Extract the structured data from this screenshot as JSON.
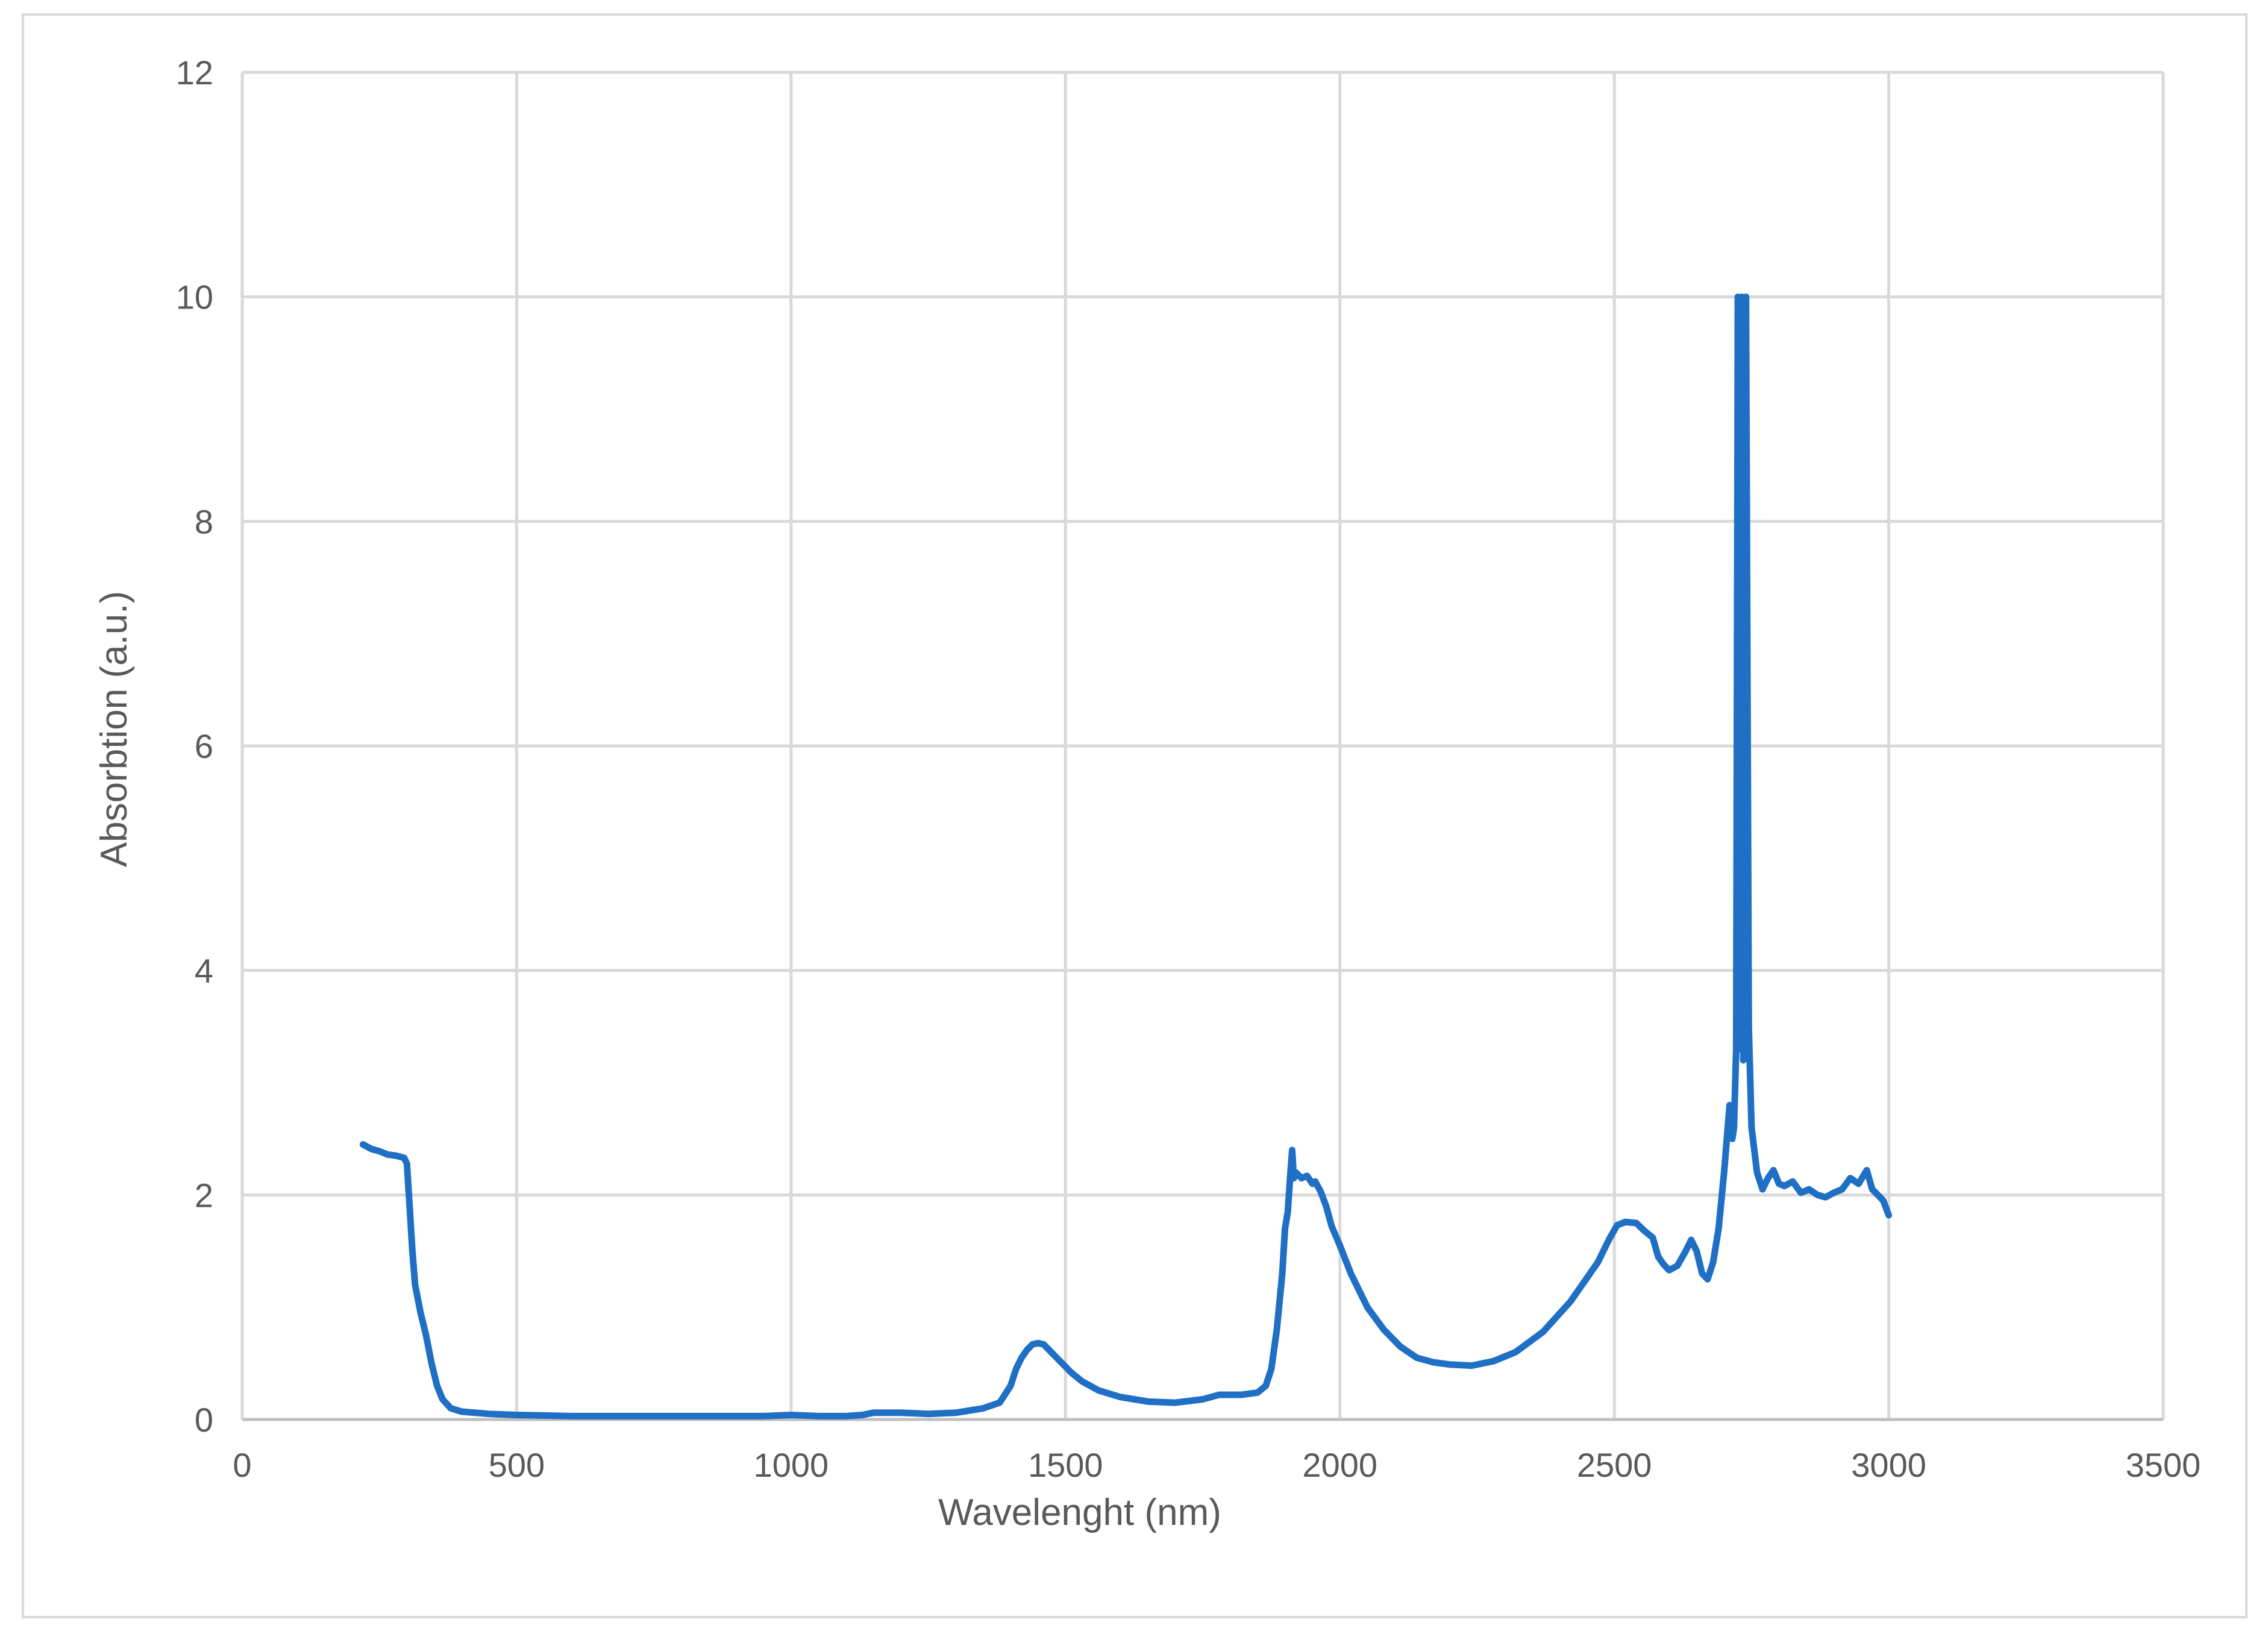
{
  "chart_data": {
    "type": "line",
    "title": "",
    "xlabel": "Wavelenght (nm)",
    "ylabel": "Absorbtion (a.u.)",
    "xlim": [
      0,
      3500
    ],
    "ylim": [
      0,
      12
    ],
    "x_ticks": [
      0,
      500,
      1000,
      1500,
      2000,
      2500,
      3000,
      3500
    ],
    "y_ticks": [
      0,
      2,
      4,
      6,
      8,
      10,
      12
    ],
    "grid": true,
    "legend": "none",
    "series_color": "#1f6fc5",
    "series": [
      {
        "points": [
          [
            220,
            2.45
          ],
          [
            235,
            2.41
          ],
          [
            250,
            2.39
          ],
          [
            265,
            2.36
          ],
          [
            280,
            2.35
          ],
          [
            295,
            2.33
          ],
          [
            300,
            2.28
          ],
          [
            305,
            1.9
          ],
          [
            310,
            1.5
          ],
          [
            315,
            1.2
          ],
          [
            325,
            0.95
          ],
          [
            335,
            0.75
          ],
          [
            345,
            0.5
          ],
          [
            355,
            0.3
          ],
          [
            365,
            0.18
          ],
          [
            380,
            0.1
          ],
          [
            400,
            0.07
          ],
          [
            450,
            0.05
          ],
          [
            500,
            0.04
          ],
          [
            600,
            0.03
          ],
          [
            700,
            0.03
          ],
          [
            800,
            0.03
          ],
          [
            900,
            0.03
          ],
          [
            950,
            0.03
          ],
          [
            1000,
            0.04
          ],
          [
            1050,
            0.03
          ],
          [
            1100,
            0.03
          ],
          [
            1130,
            0.04
          ],
          [
            1150,
            0.06
          ],
          [
            1200,
            0.06
          ],
          [
            1250,
            0.05
          ],
          [
            1300,
            0.06
          ],
          [
            1350,
            0.1
          ],
          [
            1380,
            0.15
          ],
          [
            1400,
            0.3
          ],
          [
            1410,
            0.45
          ],
          [
            1420,
            0.55
          ],
          [
            1430,
            0.62
          ],
          [
            1440,
            0.67
          ],
          [
            1450,
            0.68
          ],
          [
            1460,
            0.67
          ],
          [
            1470,
            0.62
          ],
          [
            1490,
            0.52
          ],
          [
            1510,
            0.42
          ],
          [
            1530,
            0.34
          ],
          [
            1560,
            0.26
          ],
          [
            1600,
            0.2
          ],
          [
            1650,
            0.16
          ],
          [
            1700,
            0.15
          ],
          [
            1750,
            0.18
          ],
          [
            1780,
            0.22
          ],
          [
            1820,
            0.22
          ],
          [
            1850,
            0.24
          ],
          [
            1865,
            0.3
          ],
          [
            1875,
            0.45
          ],
          [
            1885,
            0.8
          ],
          [
            1895,
            1.3
          ],
          [
            1900,
            1.7
          ],
          [
            1905,
            1.85
          ],
          [
            1910,
            2.2
          ],
          [
            1913,
            2.4
          ],
          [
            1916,
            2.15
          ],
          [
            1920,
            2.2
          ],
          [
            1930,
            2.15
          ],
          [
            1940,
            2.17
          ],
          [
            1950,
            2.1
          ],
          [
            1955,
            2.12
          ],
          [
            1965,
            2.03
          ],
          [
            1975,
            1.9
          ],
          [
            1985,
            1.72
          ],
          [
            2000,
            1.55
          ],
          [
            2020,
            1.3
          ],
          [
            2050,
            1.0
          ],
          [
            2080,
            0.8
          ],
          [
            2110,
            0.65
          ],
          [
            2140,
            0.55
          ],
          [
            2170,
            0.51
          ],
          [
            2200,
            0.49
          ],
          [
            2240,
            0.48
          ],
          [
            2280,
            0.52
          ],
          [
            2320,
            0.6
          ],
          [
            2370,
            0.78
          ],
          [
            2420,
            1.05
          ],
          [
            2470,
            1.4
          ],
          [
            2490,
            1.6
          ],
          [
            2505,
            1.73
          ],
          [
            2520,
            1.76
          ],
          [
            2540,
            1.75
          ],
          [
            2555,
            1.68
          ],
          [
            2570,
            1.62
          ],
          [
            2580,
            1.45
          ],
          [
            2590,
            1.38
          ],
          [
            2600,
            1.33
          ],
          [
            2615,
            1.37
          ],
          [
            2630,
            1.5
          ],
          [
            2640,
            1.6
          ],
          [
            2650,
            1.5
          ],
          [
            2660,
            1.3
          ],
          [
            2670,
            1.25
          ],
          [
            2680,
            1.4
          ],
          [
            2690,
            1.7
          ],
          [
            2700,
            2.2
          ],
          [
            2710,
            2.8
          ],
          [
            2715,
            2.5
          ],
          [
            2718,
            2.6
          ],
          [
            2722,
            3.3
          ],
          [
            2725,
            10.0
          ],
          [
            2728,
            3.3
          ],
          [
            2732,
            10.0
          ],
          [
            2735,
            3.2
          ],
          [
            2740,
            10.0
          ],
          [
            2745,
            3.5
          ],
          [
            2750,
            2.6
          ],
          [
            2760,
            2.2
          ],
          [
            2770,
            2.05
          ],
          [
            2780,
            2.15
          ],
          [
            2790,
            2.22
          ],
          [
            2800,
            2.1
          ],
          [
            2810,
            2.08
          ],
          [
            2825,
            2.12
          ],
          [
            2840,
            2.02
          ],
          [
            2855,
            2.05
          ],
          [
            2870,
            2.0
          ],
          [
            2885,
            1.98
          ],
          [
            2900,
            2.02
          ],
          [
            2915,
            2.05
          ],
          [
            2930,
            2.15
          ],
          [
            2945,
            2.1
          ],
          [
            2960,
            2.22
          ],
          [
            2970,
            2.05
          ],
          [
            2980,
            2.0
          ],
          [
            2990,
            1.95
          ],
          [
            3000,
            1.82
          ]
        ]
      }
    ]
  }
}
